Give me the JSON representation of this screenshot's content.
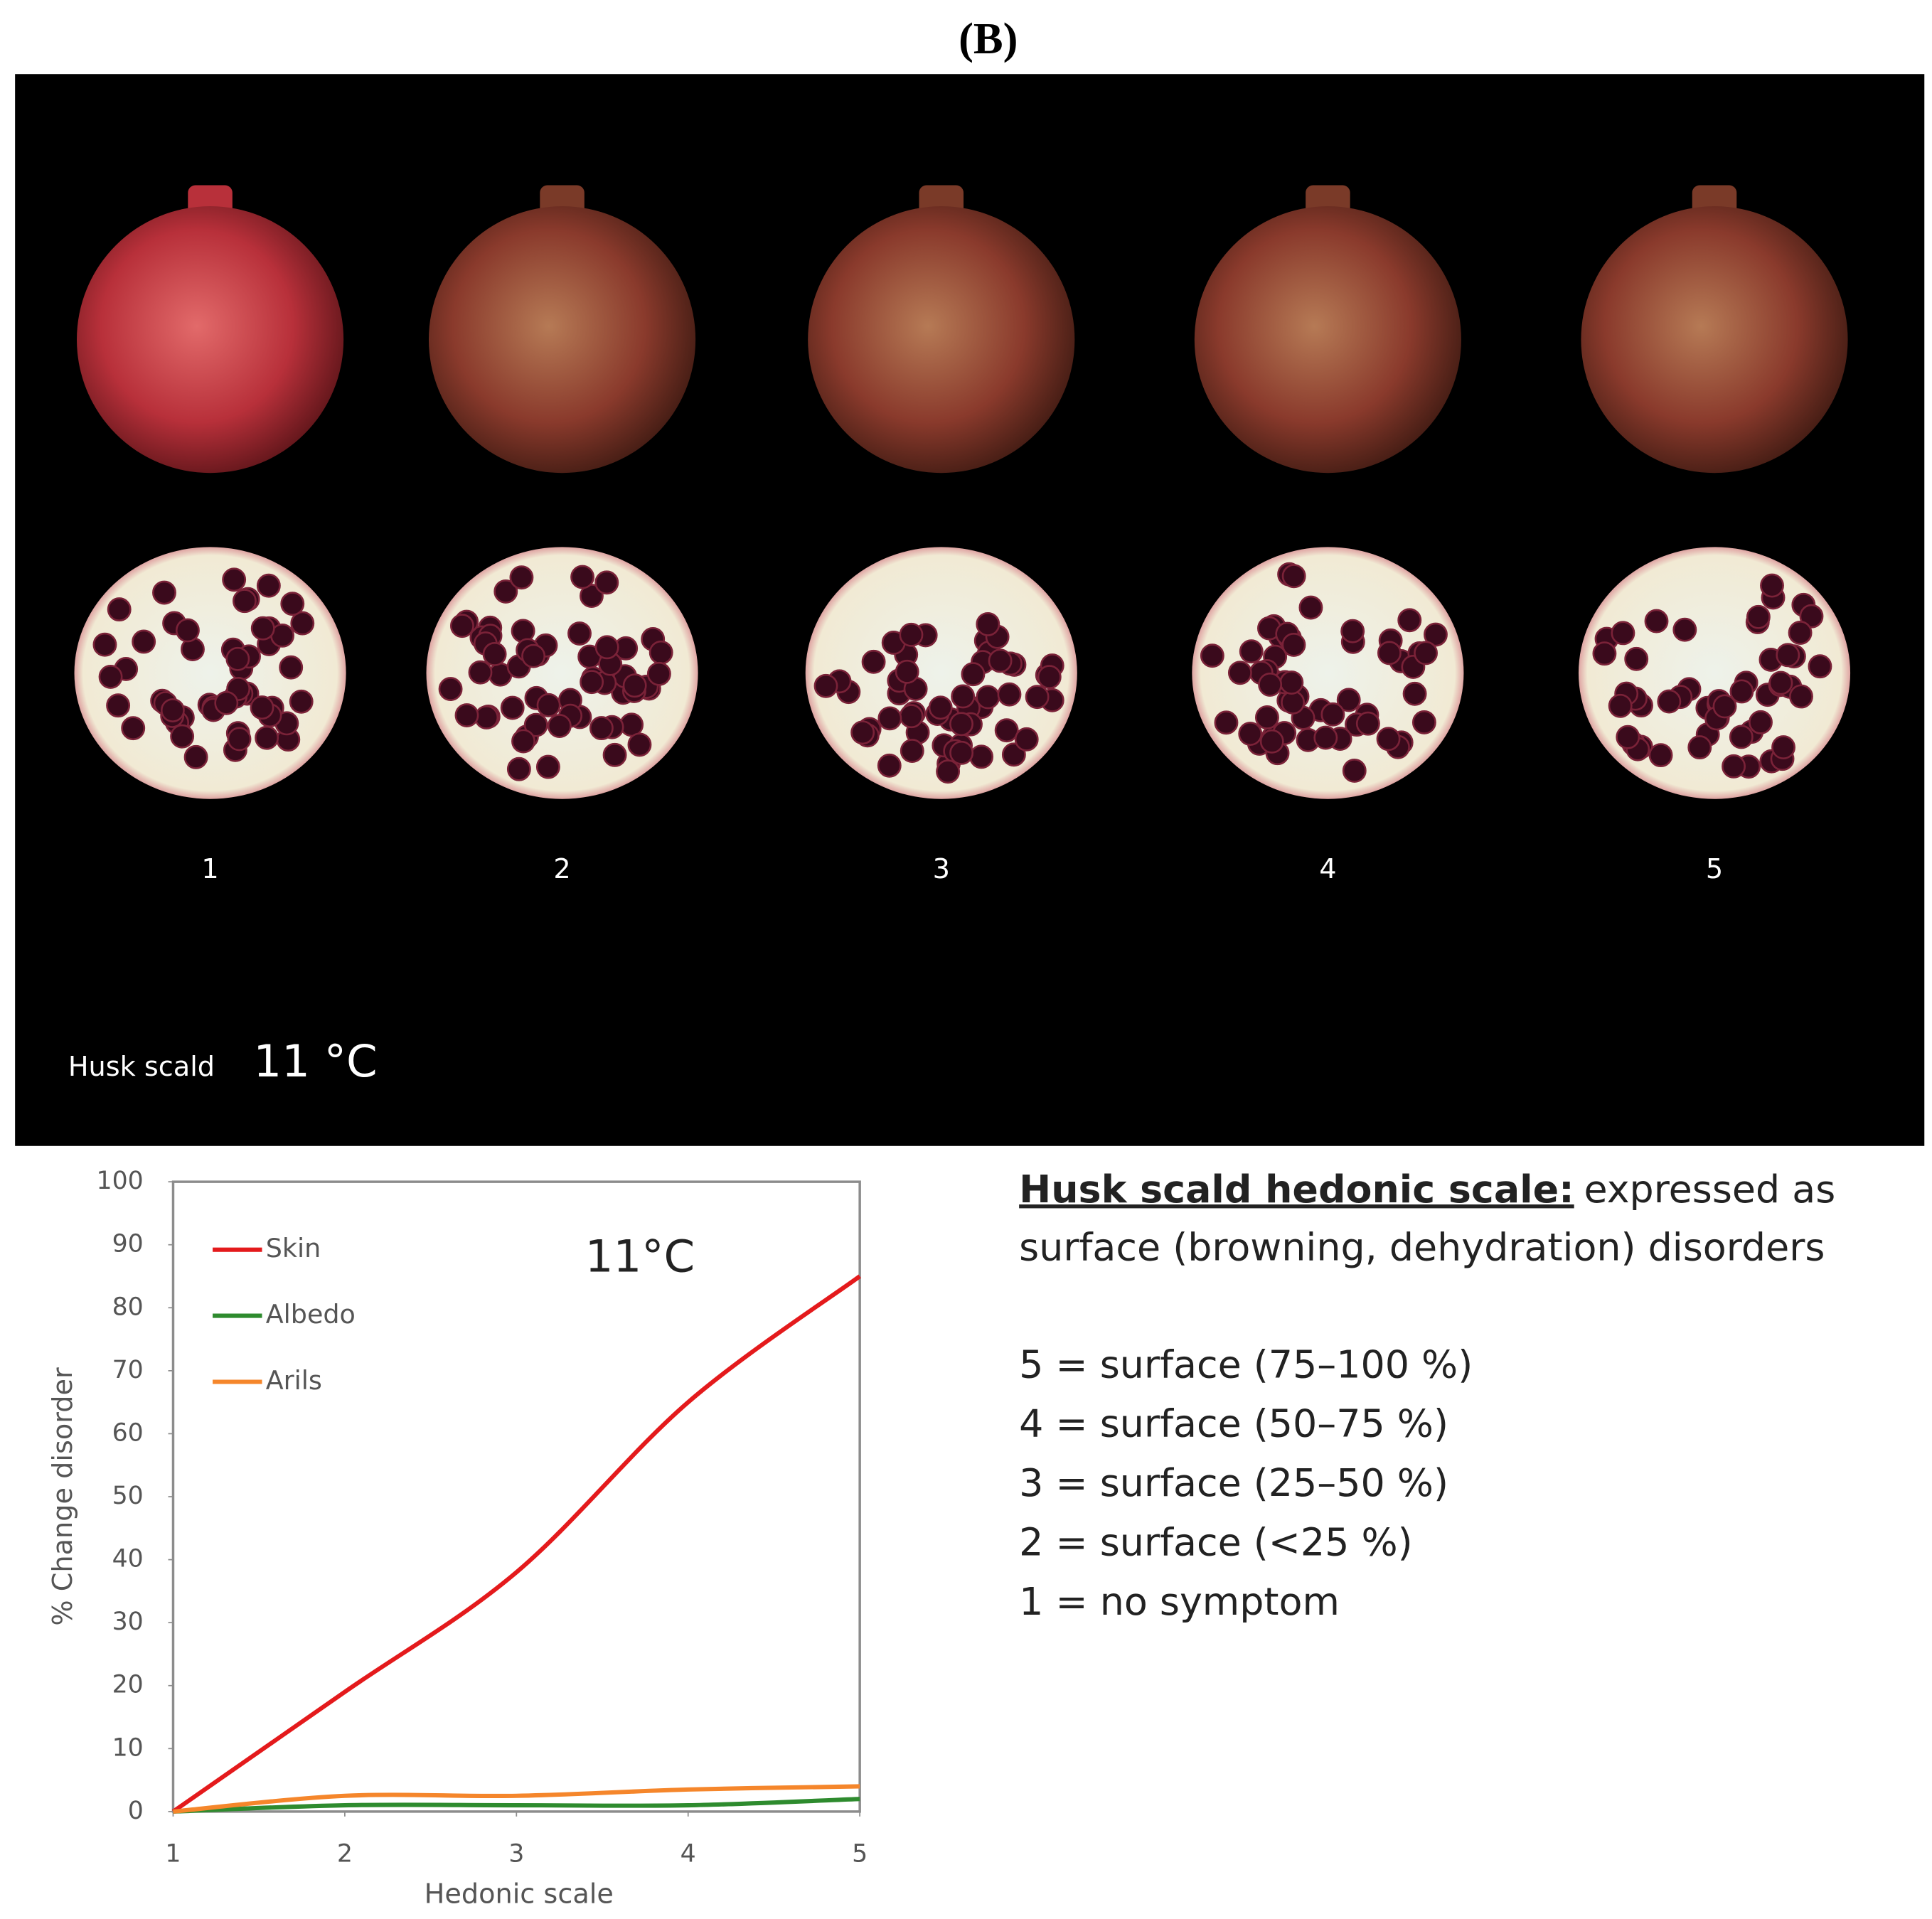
{
  "figure_label": "(B)",
  "photo": {
    "labels": [
      "1",
      "2",
      "3",
      "4",
      "5"
    ],
    "caption": "Husk scald",
    "temperature": "11 °C"
  },
  "chart_data": {
    "type": "line",
    "annotation": "11°C",
    "x": [
      1,
      2,
      3,
      4,
      5
    ],
    "series": [
      {
        "name": "Skin",
        "color": "#e41a1c",
        "values": [
          0,
          19,
          38,
          65,
          85
        ]
      },
      {
        "name": "Albedo",
        "color": "#2e8b2e",
        "values": [
          0,
          1,
          1,
          1,
          2
        ]
      },
      {
        "name": "Arils",
        "color": "#f5862b",
        "values": [
          0,
          2.5,
          2.5,
          3.5,
          4
        ]
      }
    ],
    "xlim": [
      1,
      5
    ],
    "xticks": [
      1,
      2,
      3,
      4,
      5
    ],
    "ylim": [
      0,
      100
    ],
    "yticks": [
      0,
      10,
      20,
      30,
      40,
      50,
      60,
      70,
      80,
      90,
      100
    ],
    "xlabel": "Hedonic scale",
    "ylabel": "% Change disorder",
    "grid": false,
    "legend": "upper left"
  },
  "scale_text": {
    "heading": "Husk scald hedonic scale:",
    "description": [
      "expressed as",
      "surface (browning, dehydration) disorders"
    ],
    "levels": [
      "5 = surface (75–100 %)",
      "4 = surface (50–75 %)",
      "3 = surface (25–50 %)",
      "2 = surface (<25 %)",
      "1 = no symptom"
    ]
  }
}
